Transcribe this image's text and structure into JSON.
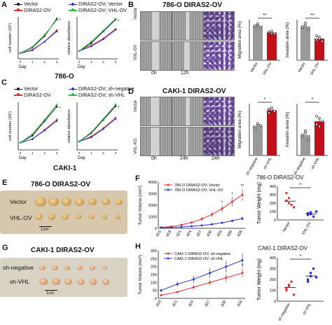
{
  "panels": {
    "A": {
      "label": "A",
      "cell_line": "786-O",
      "plot1_ylabel": "cell number (10⁵)",
      "plot2_ylabel": "relative absorbance",
      "x_axis_label": "Day",
      "x_ticks": [
        "0",
        "1",
        "2",
        "3"
      ],
      "legend": [
        "Vector",
        "DIRAS2-OV",
        "DIRAS2-OV; Vector",
        "DIRAS2-OV; VHL-OV"
      ]
    },
    "B": {
      "label": "B",
      "title": "786-O DIRAS2-OV",
      "row_labels": [
        "Vector",
        "VHL-OV"
      ],
      "time_labels": [
        "0h",
        "12h"
      ],
      "migration_ylabel": "Migration area (%)",
      "invasion_ylabel": "Invasion area (%)",
      "groups": [
        "Vector",
        "VHL-OV"
      ],
      "sig_migration": "**",
      "sig_invasion": "**"
    },
    "C": {
      "label": "C",
      "cell_line": "CAKI-1",
      "plot1_ylabel": "cell number (10⁵)",
      "plot2_ylabel": "relative absorbance",
      "x_axis_label": "Day",
      "x_ticks": [
        "0",
        "1",
        "2",
        "3"
      ],
      "legend": [
        "Vector",
        "DIRAS2-OV",
        "DIRAS2-OV; sh-negative",
        "DIRAS2-OV; sh-VHL"
      ]
    },
    "D": {
      "label": "D",
      "title": "CAKI-1 DIRAS2-OV",
      "row_labels": [
        "Vector",
        "VHL-KD"
      ],
      "time_labels": [
        "0h",
        "24h",
        "24h"
      ],
      "migration_ylabel": "Migration area (%)",
      "invasion_ylabel": "Invasion area (%)",
      "groups": [
        "sh-negative",
        "sh-VHL"
      ],
      "sig_migration": "*",
      "sig_invasion": "*"
    },
    "E": {
      "label": "E",
      "title": "786-O DIRAS2-OV",
      "row_labels": [
        "Vector",
        "VHL-OV"
      ],
      "scale": "1cm"
    },
    "F": {
      "label": "F",
      "title": "786-O DIRAS2-OV",
      "ylabel": "Tumor Volume (mm³)",
      "weight_ylabel": "Tumor Weight (mg)",
      "legend": [
        "786-O DIRAS2-OV; Vector",
        "786-O DIRAS2-OV; VHL-OV"
      ],
      "weight_groups": [
        "Vector",
        "VHL-OV"
      ],
      "sig": "*"
    },
    "G": {
      "label": "G",
      "title": "CAKI-1 DIRAS2-OV",
      "row_labels": [
        "sh-negative",
        "sh-VHL"
      ],
      "scale": "1cm"
    },
    "H": {
      "label": "H",
      "title": "CAKI-1 DIRAS2-OV",
      "ylabel": "Tumor Volume (mm³)",
      "weight_ylabel": "Tumor Weight (mg)",
      "legend": [
        "CAKI-1 DIRAS2-OV; sh-negative",
        "CAKI-1 DIRAS2-OV; sh-VHL"
      ],
      "weight_groups": [
        "sh-negative",
        "sh-VHL"
      ],
      "sig": "*"
    }
  },
  "colors": {
    "black": "#111111",
    "red": "#e03131",
    "blue": "#2437c8",
    "green": "#2fb84a",
    "darkred": "#c0101a"
  },
  "chart_data": [
    {
      "id": "A-growth",
      "type": "line",
      "x": [
        0,
        1,
        2,
        3
      ],
      "xlabel": "Day",
      "ylabel": "cell number (10⁵)",
      "series": [
        {
          "name": "Vector",
          "values": [
            1,
            2,
            4,
            7
          ]
        },
        {
          "name": "DIRAS2-OV",
          "values": [
            1,
            1.6,
            3,
            5
          ]
        },
        {
          "name": "DIRAS2-OV; Vector",
          "values": [
            1,
            1.5,
            3,
            4.8
          ]
        },
        {
          "name": "DIRAS2-OV; VHL-OV",
          "values": [
            1,
            2.1,
            4.2,
            6.8
          ]
        }
      ]
    },
    {
      "id": "A-absorbance",
      "type": "line",
      "x": [
        0,
        1,
        2,
        3
      ],
      "xlabel": "Day",
      "ylabel": "relative absorbance",
      "series": [
        {
          "name": "Vector",
          "values": [
            1,
            2,
            3.5,
            5
          ]
        },
        {
          "name": "DIRAS2-OV",
          "values": [
            1,
            1.7,
            2.6,
            3.8
          ]
        },
        {
          "name": "DIRAS2-OV; Vector",
          "values": [
            1,
            1.6,
            2.5,
            3.7
          ]
        },
        {
          "name": "DIRAS2-OV; VHL-OV",
          "values": [
            1,
            2.2,
            3.6,
            5.1
          ]
        }
      ]
    },
    {
      "id": "B-migration",
      "type": "scatter",
      "groups": [
        "Vector",
        "VHL-OV"
      ],
      "ylabel": "Migration area (%)",
      "ylim": [
        0,
        100
      ],
      "values": [
        [
          85,
          88,
          80,
          82,
          90
        ],
        [
          68,
          72,
          65,
          70,
          66
        ]
      ]
    },
    {
      "id": "B-invasion",
      "type": "scatter",
      "groups": [
        "Vector",
        "VHL-OV"
      ],
      "ylabel": "Invasion area (%)",
      "ylim": [
        0,
        60
      ],
      "values": [
        [
          48,
          52,
          45,
          50,
          55
        ],
        [
          30,
          34,
          28,
          36,
          32
        ]
      ]
    },
    {
      "id": "C-growth",
      "type": "line",
      "x": [
        0,
        1,
        2,
        3
      ],
      "xlabel": "Day",
      "ylabel": "cell number (10⁵)",
      "series": [
        {
          "name": "Vector",
          "values": [
            1,
            2,
            4,
            6
          ]
        },
        {
          "name": "DIRAS2-OV",
          "values": [
            1,
            1.5,
            2.8,
            4.2
          ]
        },
        {
          "name": "DIRAS2-OV; sh-negative",
          "values": [
            1,
            1.5,
            2.7,
            4
          ]
        },
        {
          "name": "DIRAS2-OV; sh-VHL",
          "values": [
            1,
            2.2,
            4.2,
            6.3
          ]
        }
      ]
    },
    {
      "id": "C-absorbance",
      "type": "line",
      "x": [
        0,
        1,
        2,
        3
      ],
      "xlabel": "Day",
      "ylabel": "relative absorbance",
      "series": [
        {
          "name": "Vector",
          "values": [
            1,
            2,
            3.6,
            5.2
          ]
        },
        {
          "name": "DIRAS2-OV",
          "values": [
            1,
            1.6,
            2.6,
            3.8
          ]
        },
        {
          "name": "DIRAS2-OV; sh-negative",
          "values": [
            1,
            1.5,
            2.5,
            3.7
          ]
        },
        {
          "name": "DIRAS2-OV; sh-VHL",
          "values": [
            1,
            2.1,
            3.7,
            5.4
          ]
        }
      ]
    },
    {
      "id": "D-migration",
      "type": "scatter",
      "groups": [
        "sh-negative",
        "sh-VHL"
      ],
      "ylabel": "Migration area (%)",
      "ylim": [
        0,
        100
      ],
      "values": [
        [
          55,
          60,
          58,
          52,
          62
        ],
        [
          82,
          88,
          85,
          90,
          92
        ]
      ]
    },
    {
      "id": "D-invasion",
      "type": "scatter",
      "groups": [
        "sh-negative",
        "sh-VHL"
      ],
      "ylabel": "Invasion area (%)",
      "ylim": [
        0,
        50
      ],
      "values": [
        [
          18,
          22,
          15,
          20,
          24
        ],
        [
          30,
          36,
          33,
          38,
          28
        ]
      ]
    },
    {
      "id": "F-volume",
      "type": "line",
      "x": [
        "d15",
        "d18",
        "d21",
        "d24",
        "d27",
        "d30",
        "d33",
        "d36",
        "d39"
      ],
      "ylabel": "Tumor Volume (mm³)",
      "ylim": [
        0,
        4000
      ],
      "yticks": [
        0,
        1000,
        2000,
        3000,
        4000
      ],
      "series": [
        {
          "name": "786-O DIRAS2-OV; Vector",
          "values": [
            80,
            150,
            300,
            500,
            800,
            1200,
            1700,
            2300,
            2900
          ]
        },
        {
          "name": "786-O DIRAS2-OV; VHL-OV",
          "values": [
            50,
            80,
            120,
            180,
            250,
            350,
            480,
            650,
            850
          ]
        }
      ],
      "sig": [
        "*",
        "*",
        "**"
      ]
    },
    {
      "id": "F-weight",
      "type": "scatter",
      "groups": [
        "Vector",
        "VHL-OV"
      ],
      "ylabel": "Tumor Weight (mg)",
      "ylim": [
        0,
        400
      ],
      "yticks": [
        0,
        100,
        200,
        300,
        400
      ],
      "values": [
        [
          320,
          260,
          180,
          150,
          230,
          200
        ],
        [
          60,
          90,
          40,
          100,
          80,
          70
        ]
      ]
    },
    {
      "id": "H-volume",
      "type": "line",
      "x": [
        "d18",
        "d21",
        "d24",
        "d27",
        "d30",
        "d33"
      ],
      "ylabel": "Tumor Volume (mm³)",
      "ylim": [
        0,
        300
      ],
      "yticks": [
        0,
        50,
        100,
        150,
        200,
        250,
        300
      ],
      "series": [
        {
          "name": "CAKI-1 DIRAS2-OV; sh-negative",
          "values": [
            20,
            40,
            70,
            100,
            130,
            160
          ]
        },
        {
          "name": "CAKI-1 DIRAS2-OV; sh-VHL",
          "values": [
            50,
            90,
            120,
            160,
            200,
            240
          ]
        }
      ],
      "sig": [
        "*"
      ]
    },
    {
      "id": "H-weight",
      "type": "scatter",
      "groups": [
        "sh-negative",
        "sh-VHL"
      ],
      "ylabel": "Tumor Weight (mg)",
      "ylim": [
        0,
        400
      ],
      "yticks": [
        0,
        100,
        200,
        300,
        400
      ],
      "values": [
        [
          100,
          150,
          180,
          60,
          120,
          140
        ],
        [
          200,
          260,
          300,
          220,
          180,
          230
        ]
      ]
    }
  ]
}
